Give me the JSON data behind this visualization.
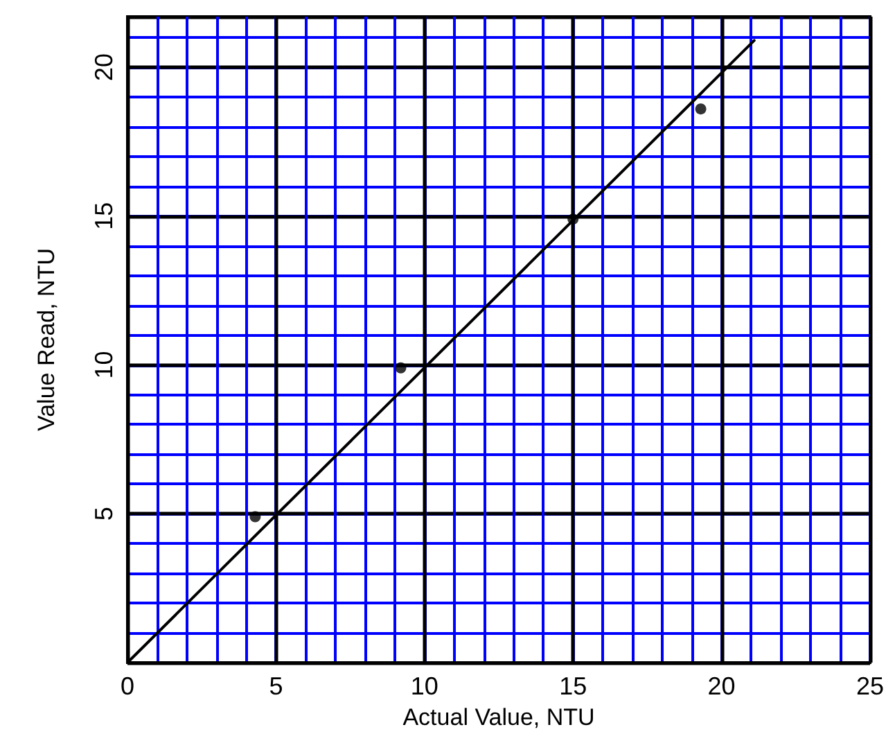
{
  "chart_data": {
    "type": "scatter",
    "xlabel": "Actual Value, NTU",
    "ylabel": "Value Read, NTU",
    "xlim": [
      0,
      25
    ],
    "xticks": [
      0,
      {
        "value": 1,
        "label": null
      },
      {
        "value": 2,
        "label": null
      },
      {
        "value": 3,
        "label": null
      },
      {
        "value": 4,
        "label": null
      },
      5,
      {
        "value": 6,
        "label": null
      },
      {
        "value": 7,
        "label": null
      },
      {
        "value": 8,
        "label": null
      },
      {
        "value": 9,
        "label": null
      },
      10,
      {
        "value": 11,
        "label": null
      },
      {
        "value": 12,
        "label": null
      },
      {
        "value": 13,
        "label": null
      },
      {
        "value": 14,
        "label": null
      },
      15,
      {
        "value": 16,
        "label": null
      },
      {
        "value": 17,
        "label": null
      },
      {
        "value": 18,
        "label": null
      },
      {
        "value": 19,
        "label": null
      },
      20,
      {
        "value": 21,
        "label": null
      },
      {
        "value": 22,
        "label": null
      },
      {
        "value": 23,
        "label": null
      },
      {
        "value": 24,
        "label": null
      },
      25
    ],
    "ylim": [
      0,
      21.7
    ],
    "yticks": [
      {
        "value": 0,
        "label": null
      },
      {
        "value": 1,
        "label": null
      },
      {
        "value": 2,
        "label": null
      },
      {
        "value": 3,
        "label": null
      },
      {
        "value": 4,
        "label": null
      },
      5,
      {
        "value": 6,
        "label": null
      },
      {
        "value": 7,
        "label": null
      },
      {
        "value": 8,
        "label": null
      },
      {
        "value": 9,
        "label": null
      },
      10,
      {
        "value": 11,
        "label": null
      },
      {
        "value": 12,
        "label": null
      },
      {
        "value": 13,
        "label": null
      },
      {
        "value": 14,
        "label": null
      },
      15,
      {
        "value": 16,
        "label": null
      },
      {
        "value": 17,
        "label": null
      },
      {
        "value": 18,
        "label": null
      },
      {
        "value": 19,
        "label": null
      },
      20,
      {
        "value": 21,
        "label": null
      }
    ],
    "grid": true,
    "marker": "circle",
    "series": [
      {
        "color": "#000000",
        "x": [
          4.3,
          9.2,
          15.0,
          19.3
        ],
        "values": [
          4.9,
          9.9,
          14.9,
          18.6
        ]
      },
      {
        "type": "line",
        "color": "#000000",
        "marker": "none",
        "line_style": "solid",
        "x": [
          0,
          21.1
        ],
        "values": [
          0,
          20.9
        ]
      }
    ]
  }
}
